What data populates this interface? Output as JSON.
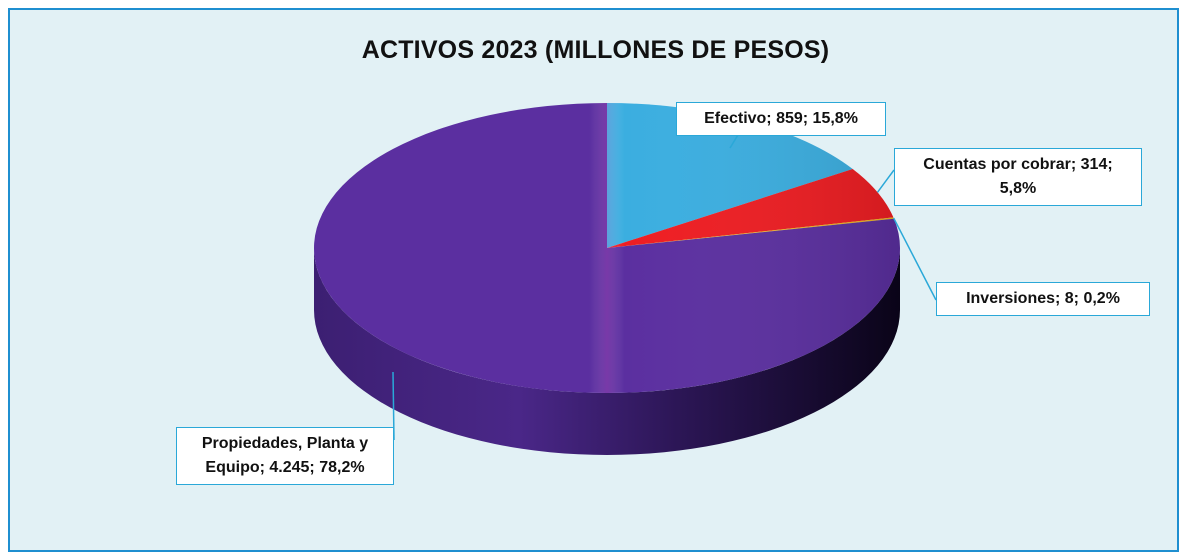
{
  "chart_data": {
    "type": "pie",
    "title": "ACTIVOS 2023 (MILLONES DE PESOS)",
    "slices": [
      {
        "name": "Efectivo",
        "value": 859,
        "percent": 15.8,
        "color": "#3baee0",
        "label": "Efectivo; 859; 15,8%"
      },
      {
        "name": "Cuentas por cobrar",
        "value": 314,
        "percent": 5.8,
        "color": "#ee1d22",
        "label": "Cuentas por cobrar; 314; 5,8%"
      },
      {
        "name": "Inversiones",
        "value": 8,
        "percent": 0.2,
        "color": "#f2b51c",
        "label": "Inversiones; 8; 0,2%"
      },
      {
        "name": "Propiedades, Planta y Equipo",
        "value": 4245,
        "percent": 78.2,
        "color": "#5b2fa0",
        "label": "Propiedades, Planta y Equipo; 4.245; 78,2%"
      }
    ],
    "style": "3d",
    "legend": "none",
    "colors": {
      "frame_border": "#1f8fd0",
      "background": "#e2f1f5",
      "leader_line": "#2aa8d8"
    }
  }
}
